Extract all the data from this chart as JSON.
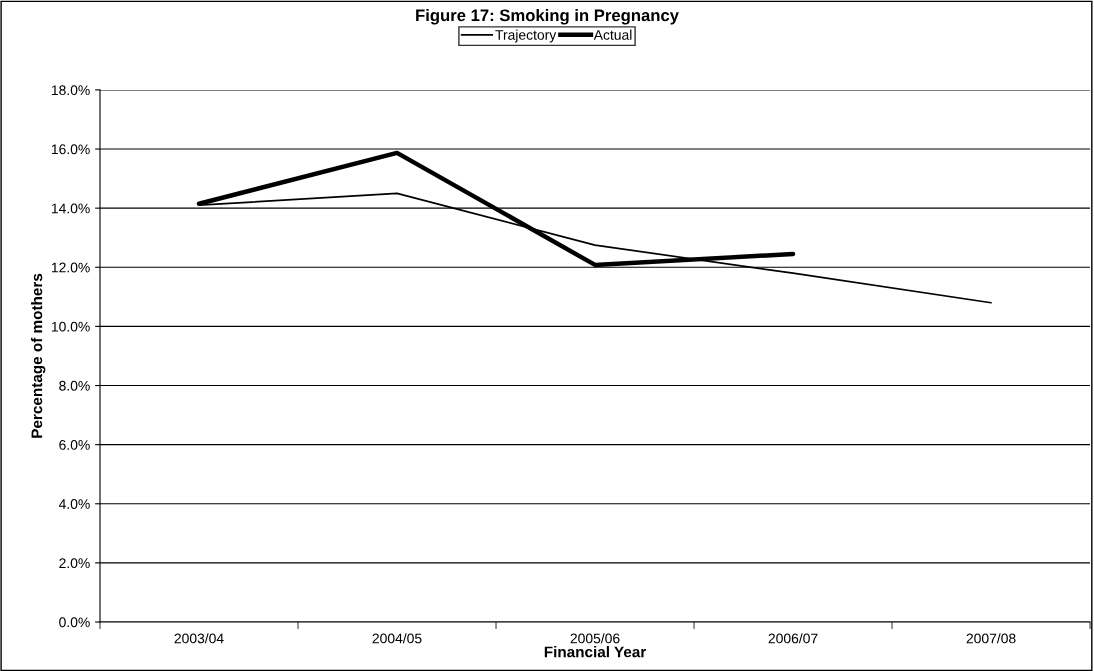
{
  "chart_data": {
    "type": "line",
    "title": "Figure 17: Smoking in Pregnancy",
    "xlabel": "Financial Year",
    "ylabel": "Percentage of mothers",
    "categories": [
      "2003/04",
      "2004/05",
      "2005/06",
      "2006/07",
      "2007/08"
    ],
    "series": [
      {
        "name": "Trajectory",
        "color": "#000000",
        "values": [
          14.1,
          14.5,
          12.75,
          11.8,
          10.8
        ]
      },
      {
        "name": "Actual",
        "color": "#000000",
        "values": [
          14.15,
          15.87,
          12.08,
          12.45,
          null
        ]
      }
    ],
    "ylim": [
      0,
      18
    ],
    "yticks": [
      {
        "value": 0,
        "label": "0.0%"
      },
      {
        "value": 2,
        "label": "2.0%"
      },
      {
        "value": 4,
        "label": "4.0%"
      },
      {
        "value": 6,
        "label": "6.0%"
      },
      {
        "value": 8,
        "label": "8.0%"
      },
      {
        "value": 10,
        "label": "10.0%"
      },
      {
        "value": 12,
        "label": "12.0%"
      },
      {
        "value": 14,
        "label": "14.0%"
      },
      {
        "value": 16,
        "label": "16.0%"
      },
      {
        "value": 18,
        "label": "18.0%"
      }
    ],
    "grid": "y",
    "legend": "top",
    "marker": "none",
    "line_style": "solid"
  }
}
